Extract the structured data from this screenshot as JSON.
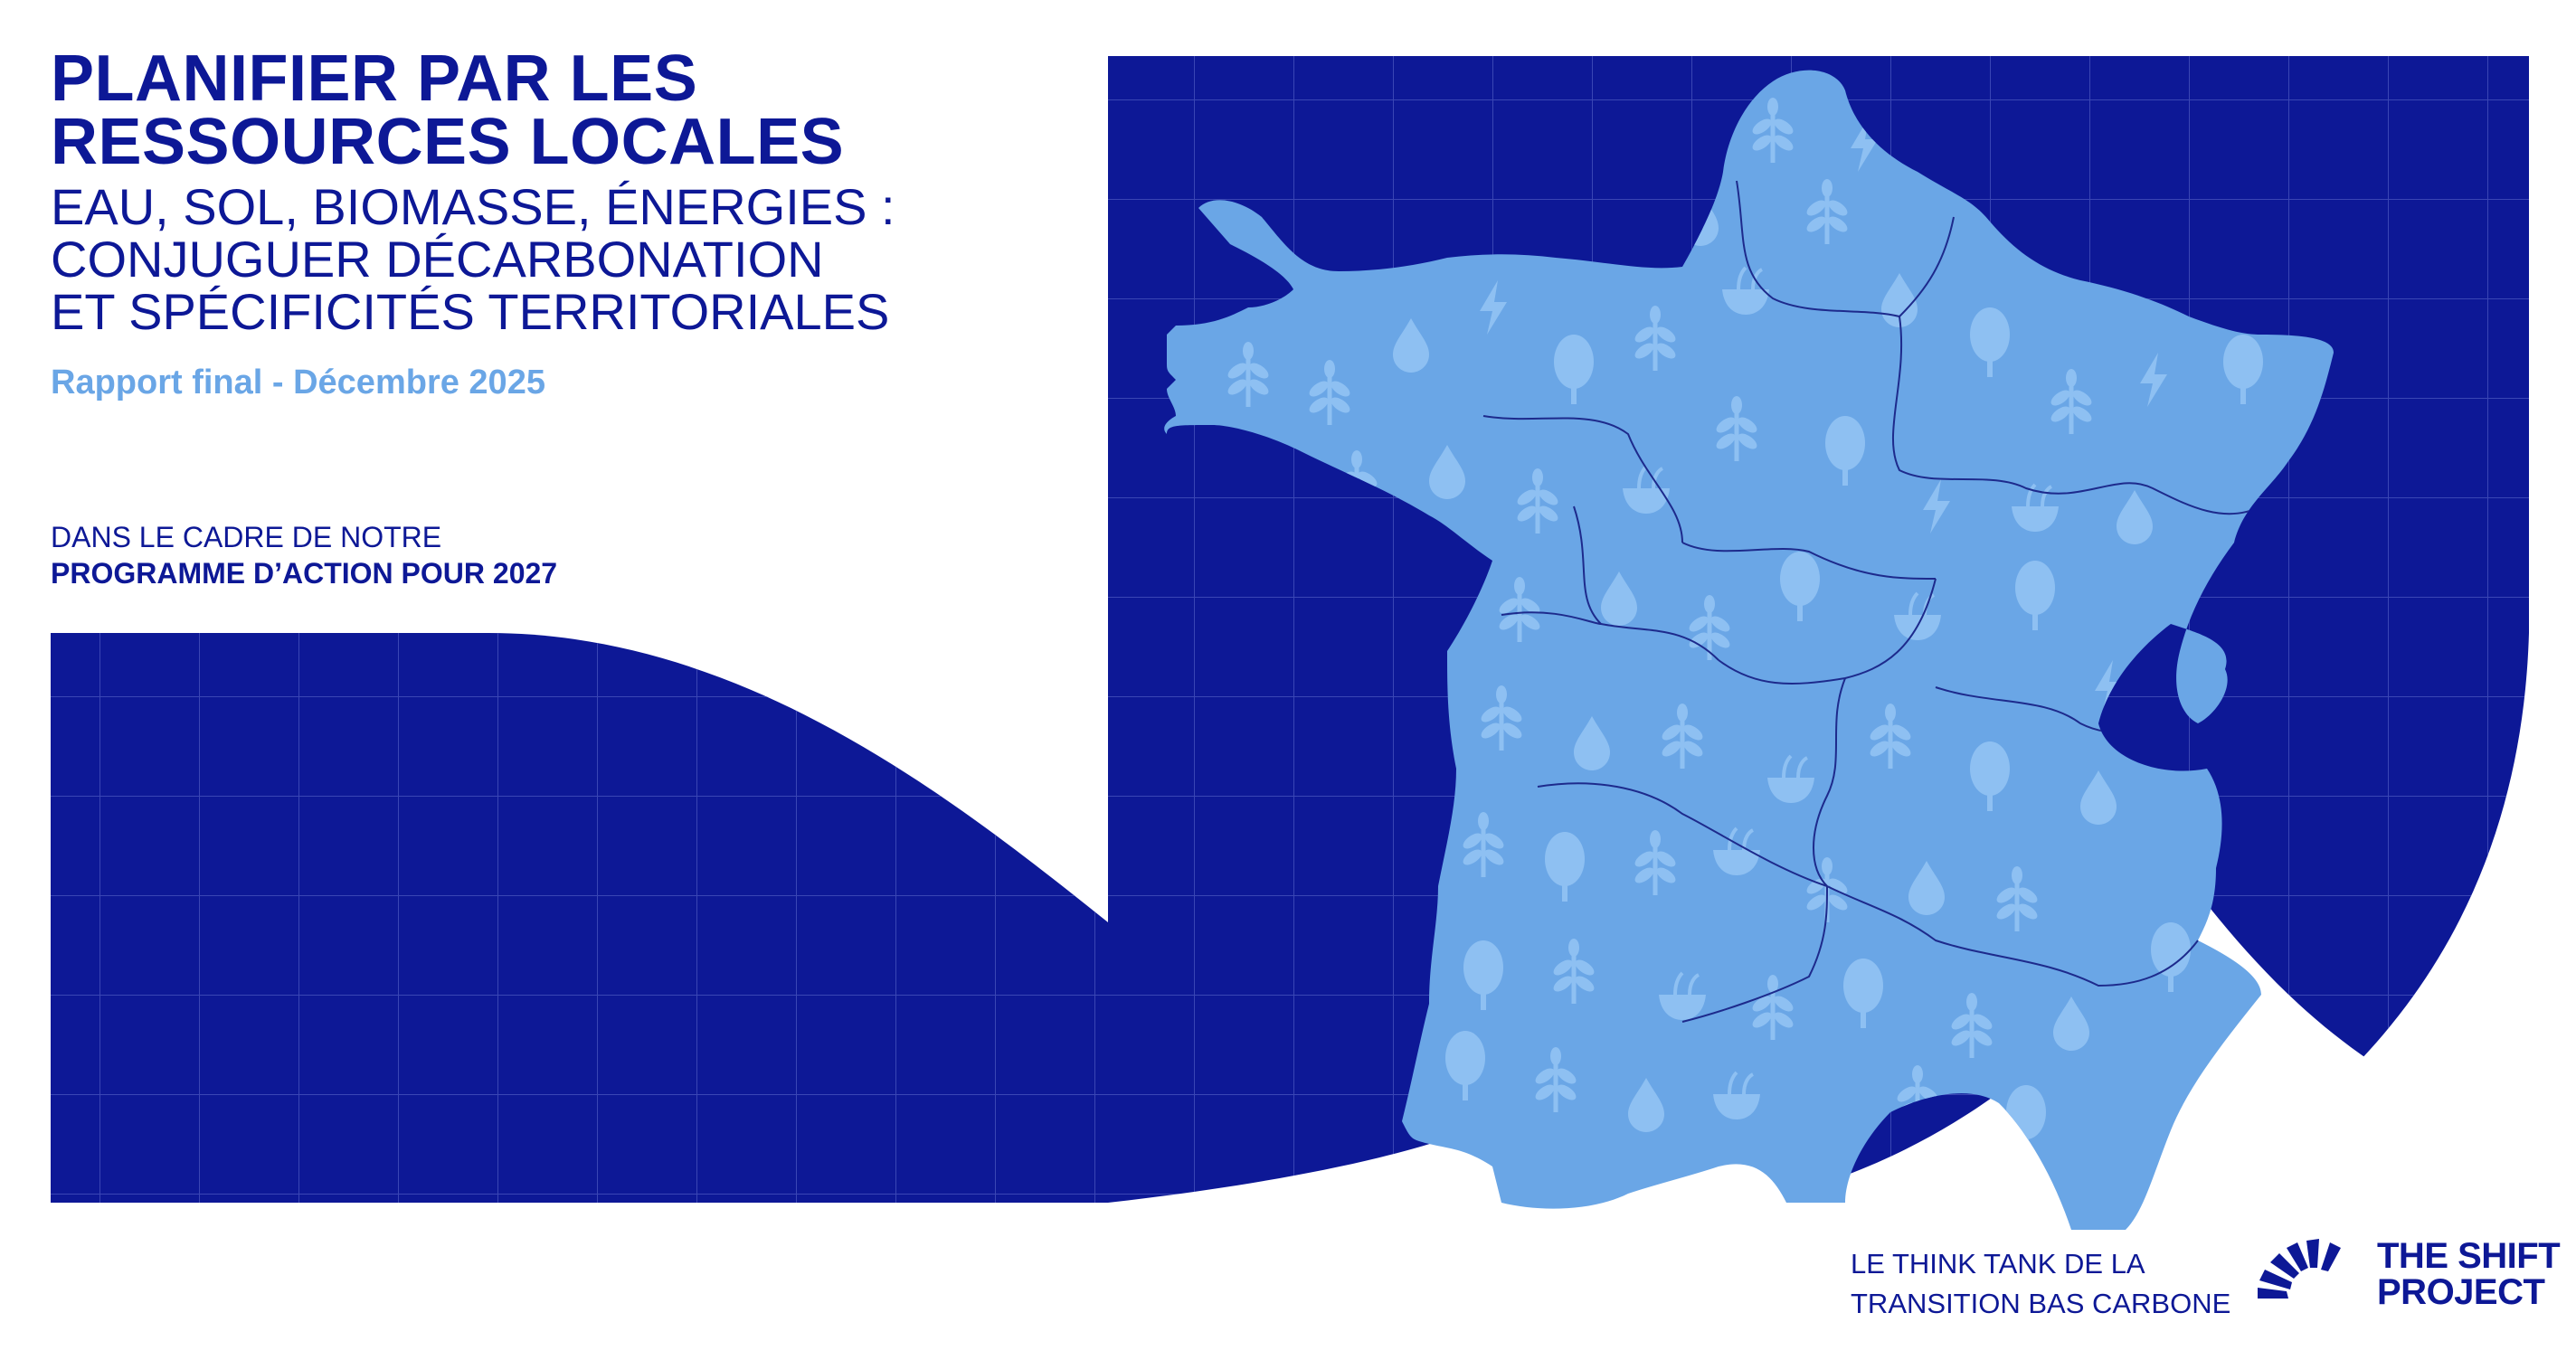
{
  "title": {
    "line1": "PLANIFIER PAR LES",
    "line2": "RESSOURCES LOCALES"
  },
  "subtitle": {
    "line1": "EAU, SOL, BIOMASSE, ÉNERGIES :",
    "line2": "CONJUGUER DÉCARBONATION",
    "line3": "ET SPÉCIFICITÉS TERRITORIALES"
  },
  "report_date": "Rapport final - Décembre 2025",
  "program": {
    "intro": "DANS LE CADRE DE NOTRE",
    "name": "PROGRAMME D’ACTION POUR 2027"
  },
  "footer": {
    "tagline_line1": "LE THINK TANK DE LA",
    "tagline_line2": "TRANSITION BAS CARBONE"
  },
  "logo": {
    "line1": "THE SHIFT",
    "line2": "PROJECT",
    "icon": "sunburst-icon"
  },
  "colors": {
    "navy": "#0d1896",
    "map_fill": "#6aa6e6",
    "icon_fill": "#8ec0f2",
    "grid": "#3a46b4",
    "date_text": "#6aa6e6"
  }
}
